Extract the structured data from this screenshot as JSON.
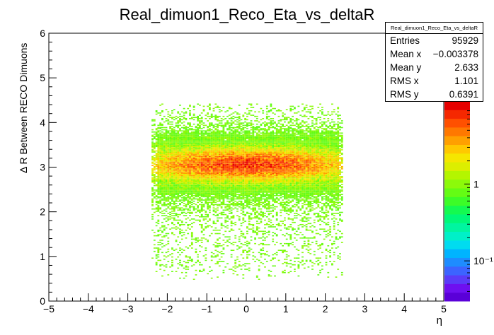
{
  "chart_data": {
    "type": "heatmap",
    "title": "Real_dimuon1_Reco_Eta_vs_deltaR",
    "xlabel": "η",
    "ylabel": "Δ R Between RECO Dimuons",
    "xlim": [
      -5,
      5
    ],
    "ylim": [
      0,
      6
    ],
    "x_ticks": [
      "−5",
      "−4",
      "−3",
      "−2",
      "−1",
      "0",
      "1",
      "2",
      "3",
      "4",
      "5"
    ],
    "y_ticks": [
      "0",
      "1",
      "2",
      "3",
      "4",
      "5",
      "6"
    ],
    "z_scale": "log",
    "z_tick_labels": [
      "1",
      "10⁻¹"
    ],
    "z_tick_values": [
      1,
      0.1
    ],
    "z_range": [
      0.03,
      12
    ],
    "grid": false,
    "distribution": {
      "x_range": [
        -2.4,
        2.4
      ],
      "y_range": [
        0.45,
        4.4
      ],
      "peak_y": 3.05,
      "peak_x": 0.0
    },
    "stats": {
      "name": "Real_dimuon1_Reco_Eta_vs_deltaR",
      "rows": [
        {
          "label": "Entries",
          "value": "95929"
        },
        {
          "label": "Mean x",
          "value": "−0.003378"
        },
        {
          "label": "Mean y",
          "value": "2.633"
        },
        {
          "label": "RMS x",
          "value": "1.101"
        },
        {
          "label": "RMS y",
          "value": "0.6391"
        }
      ]
    },
    "palette": [
      "#5a00d8",
      "#6e10f0",
      "#5a3cf8",
      "#3c64ff",
      "#1e8cff",
      "#00b4ff",
      "#00dcf0",
      "#00f0c8",
      "#00f5a0",
      "#00f878",
      "#14fa50",
      "#3cfc28",
      "#64fc14",
      "#8cfa0a",
      "#b4f500",
      "#dcee00",
      "#f5e600",
      "#ffc800",
      "#ffa000",
      "#ff7800",
      "#ff5000",
      "#f52800",
      "#e60000"
    ]
  }
}
